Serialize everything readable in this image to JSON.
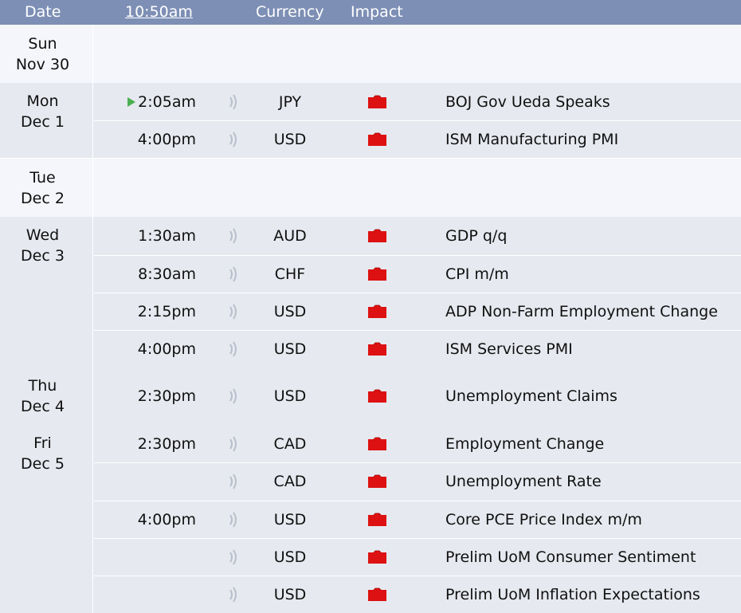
{
  "header": {
    "date": "Date",
    "time": "10:50am",
    "currency": "Currency",
    "impact": "Impact"
  },
  "colors": {
    "header_bg": "#7d8fb5",
    "impact_high": "#dd1111",
    "next_marker": "#4caf50",
    "row_bg": "#e6e9ef",
    "empty_bg": "#f4f6fb"
  },
  "impact_icon": "red-folder-icon",
  "sound_icon": "speaker-waves-icon",
  "next_icon": "play-triangle-icon",
  "days": [
    {
      "day": "Sun",
      "date": "Nov 30",
      "events": []
    },
    {
      "day": "Mon",
      "date": "Dec 1",
      "events": [
        {
          "time": "2:05am",
          "currency": "JPY",
          "impact": "high",
          "title": "BOJ Gov Ueda Speaks",
          "next": true
        },
        {
          "time": "4:00pm",
          "currency": "USD",
          "impact": "high",
          "title": "ISM Manufacturing PMI"
        }
      ]
    },
    {
      "day": "Tue",
      "date": "Dec 2",
      "events": []
    },
    {
      "day": "Wed",
      "date": "Dec 3",
      "events": [
        {
          "time": "1:30am",
          "currency": "AUD",
          "impact": "high",
          "title": "GDP q/q"
        },
        {
          "time": "8:30am",
          "currency": "CHF",
          "impact": "high",
          "title": "CPI m/m"
        },
        {
          "time": "2:15pm",
          "currency": "USD",
          "impact": "high",
          "title": "ADP Non-Farm Employment Change"
        },
        {
          "time": "4:00pm",
          "currency": "USD",
          "impact": "high",
          "title": "ISM Services PMI"
        }
      ]
    },
    {
      "day": "Thu",
      "date": "Dec 4",
      "events": [
        {
          "time": "2:30pm",
          "currency": "USD",
          "impact": "high",
          "title": "Unemployment Claims"
        }
      ]
    },
    {
      "day": "Fri",
      "date": "Dec 5",
      "events": [
        {
          "time": "2:30pm",
          "currency": "CAD",
          "impact": "high",
          "title": "Employment Change"
        },
        {
          "time": "",
          "currency": "CAD",
          "impact": "high",
          "title": "Unemployment Rate"
        },
        {
          "time": "4:00pm",
          "currency": "USD",
          "impact": "high",
          "title": "Core PCE Price Index m/m"
        },
        {
          "time": "",
          "currency": "USD",
          "impact": "high",
          "title": "Prelim UoM Consumer Sentiment"
        },
        {
          "time": "",
          "currency": "USD",
          "impact": "high",
          "title": "Prelim UoM Inflation Expectations"
        }
      ]
    }
  ]
}
